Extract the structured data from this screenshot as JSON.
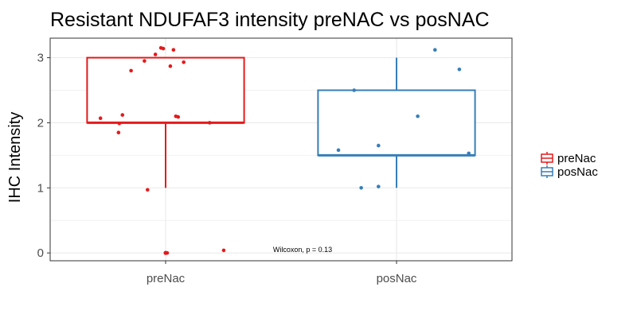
{
  "chart_data": {
    "type": "box",
    "title": "Resistant NDUFAF3 intensity preNAC vs posNAC",
    "xlabel": "",
    "ylabel": "IHC Intensity",
    "categories": [
      "preNac",
      "posNac"
    ],
    "yticks": [
      "0",
      "1",
      "2",
      "3"
    ],
    "ylim": [
      -0.12,
      3.3
    ],
    "grid": true,
    "legend": {
      "position": "right",
      "entries": [
        "preNac",
        "posNac"
      ]
    },
    "annotation": "Wilcoxon, p = 0.13",
    "series": [
      {
        "name": "preNac",
        "color": "#E41A1C",
        "box": {
          "min": 1,
          "q1": 2,
          "median": 2,
          "q3": 3,
          "max": 3
        },
        "outliers": [
          0,
          0
        ],
        "points": [
          {
            "x": -0.06,
            "y": 3.15
          },
          {
            "x": -0.03,
            "y": 3.14
          },
          {
            "x": 0.1,
            "y": 3.12
          },
          {
            "x": -0.13,
            "y": 3.05
          },
          {
            "x": -0.27,
            "y": 2.95
          },
          {
            "x": 0.23,
            "y": 2.93
          },
          {
            "x": 0.06,
            "y": 2.87
          },
          {
            "x": -0.44,
            "y": 2.8
          },
          {
            "x": -0.55,
            "y": 2.12
          },
          {
            "x": 0.13,
            "y": 2.1
          },
          {
            "x": 0.16,
            "y": 2.09
          },
          {
            "x": -0.83,
            "y": 2.07
          },
          {
            "x": -0.59,
            "y": 1.99
          },
          {
            "x": 0.56,
            "y": 2.0
          },
          {
            "x": -0.6,
            "y": 1.85
          },
          {
            "x": -0.23,
            "y": 0.97
          },
          {
            "x": 0.02,
            "y": 0.0
          },
          {
            "x": 0.74,
            "y": 0.04
          }
        ]
      },
      {
        "name": "posNac",
        "color": "#377EB8",
        "box": {
          "min": 1,
          "q1": 1.5,
          "median": 1.5,
          "q3": 2.5,
          "max": 3
        },
        "outliers": [],
        "points": [
          {
            "x": 0.49,
            "y": 3.12
          },
          {
            "x": 0.8,
            "y": 2.82
          },
          {
            "x": -0.54,
            "y": 2.5
          },
          {
            "x": 0.27,
            "y": 2.1
          },
          {
            "x": -0.23,
            "y": 1.65
          },
          {
            "x": -0.74,
            "y": 1.58
          },
          {
            "x": 0.92,
            "y": 1.53
          },
          {
            "x": -0.45,
            "y": 1.0
          },
          {
            "x": -0.23,
            "y": 1.02
          }
        ]
      }
    ]
  }
}
